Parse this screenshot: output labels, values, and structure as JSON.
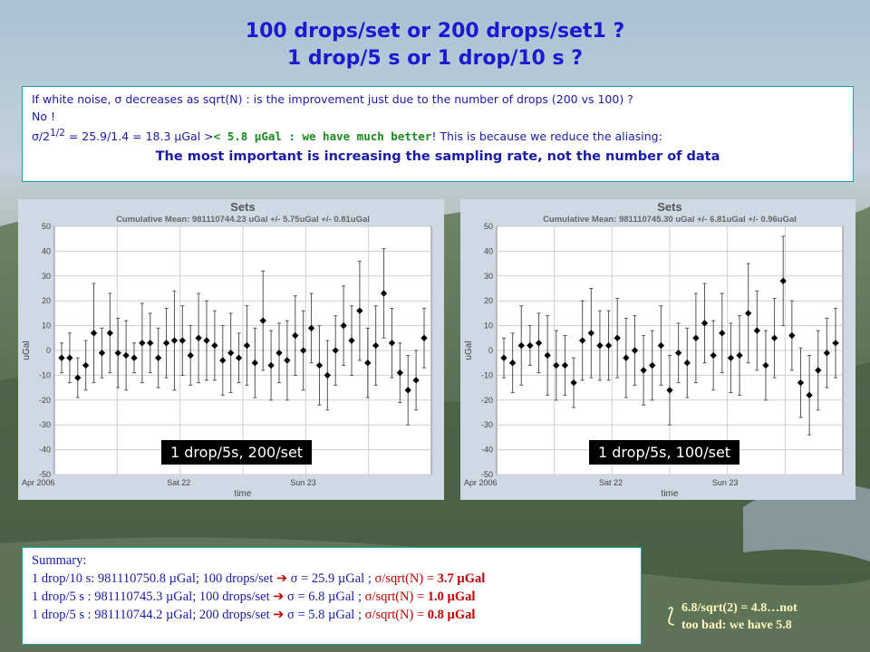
{
  "title_line1": "100 drops/set or 200 drops/set1 ?",
  "title_line2": "1 drop/5 s or 1 drop/10 s ?",
  "info": {
    "line1": "If white noise, σ decreases as sqrt(N) : is the improvement just due to the number of drops (200 vs 100) ?",
    "line2": "No !",
    "line3a": "σ/2",
    "line3sup": "1/2",
    "line3b": " = 25.9/1.4 = 18.3 µGal >",
    "line3green": "< 5.8 µGal : we have much better",
    "line3c": "! This is because we reduce the aliasing:",
    "line4": "The most important is increasing the sampling rate, not the number of data"
  },
  "chart_data": [
    {
      "type": "scatter",
      "title": "Sets",
      "subtitle": "Cumulative Mean: 981110744.23 uGal  +/-  5.75uGal  +/-  0.81uGal",
      "xlabel": "time",
      "ylabel": "uGal",
      "ylim": [
        -50,
        50
      ],
      "yticks": [
        -50,
        -40,
        -30,
        -20,
        -10,
        0,
        10,
        20,
        30,
        40,
        50
      ],
      "xtick_labels": [
        "Apr 2006",
        "Sat 22",
        "Sun 23"
      ],
      "grid": true,
      "badge": "1 drop/5s, 200/set",
      "points": [
        {
          "y": -3,
          "err": 6
        },
        {
          "y": -3,
          "err": 10
        },
        {
          "y": -11,
          "err": 8
        },
        {
          "y": -6,
          "err": 10
        },
        {
          "y": 7,
          "err": 20
        },
        {
          "y": -1,
          "err": 10
        },
        {
          "y": 7,
          "err": 16
        },
        {
          "y": -1,
          "err": 14
        },
        {
          "y": -2,
          "err": 14
        },
        {
          "y": -3,
          "err": 6
        },
        {
          "y": 3,
          "err": 16
        },
        {
          "y": 3,
          "err": 12
        },
        {
          "y": -3,
          "err": 12
        },
        {
          "y": 3,
          "err": 14
        },
        {
          "y": 4,
          "err": 20
        },
        {
          "y": 4,
          "err": 14
        },
        {
          "y": -2,
          "err": 12
        },
        {
          "y": 5,
          "err": 18
        },
        {
          "y": 4,
          "err": 16
        },
        {
          "y": 2,
          "err": 14
        },
        {
          "y": -4,
          "err": 14
        },
        {
          "y": -1,
          "err": 16
        },
        {
          "y": -3,
          "err": 10
        },
        {
          "y": 2,
          "err": 16
        },
        {
          "y": -5,
          "err": 14
        },
        {
          "y": 12,
          "err": 20
        },
        {
          "y": -6,
          "err": 14
        },
        {
          "y": -1,
          "err": 12
        },
        {
          "y": -4,
          "err": 16
        },
        {
          "y": 6,
          "err": 16
        },
        {
          "y": 0,
          "err": 16
        },
        {
          "y": 9,
          "err": 14
        },
        {
          "y": -6,
          "err": 16
        },
        {
          "y": -10,
          "err": 14
        },
        {
          "y": 0,
          "err": 14
        },
        {
          "y": 10,
          "err": 16
        },
        {
          "y": 4,
          "err": 14
        },
        {
          "y": 16,
          "err": 20
        },
        {
          "y": -5,
          "err": 14
        },
        {
          "y": 2,
          "err": 16
        },
        {
          "y": 23,
          "err": 18
        },
        {
          "y": 3,
          "err": 14
        },
        {
          "y": -9,
          "err": 12
        },
        {
          "y": -16,
          "err": 14
        },
        {
          "y": -12,
          "err": 12
        },
        {
          "y": 5,
          "err": 12
        }
      ]
    },
    {
      "type": "scatter",
      "title": "Sets",
      "subtitle": "Cumulative Mean: 981110745.30 uGal  +/-  6.81uGal  +/-  0.96uGal",
      "xlabel": "time",
      "ylabel": "uGal",
      "ylim": [
        -50,
        50
      ],
      "yticks": [
        -50,
        -40,
        -30,
        -20,
        -10,
        0,
        10,
        20,
        30,
        40,
        50
      ],
      "xtick_labels": [
        "Apr 2006",
        "Sat 22",
        "Sun 23"
      ],
      "grid": true,
      "badge": "1 drop/5s, 100/set",
      "points": [
        {
          "y": -3,
          "err": 8
        },
        {
          "y": -5,
          "err": 12
        },
        {
          "y": 2,
          "err": 16
        },
        {
          "y": 2,
          "err": 8
        },
        {
          "y": 3,
          "err": 12
        },
        {
          "y": -2,
          "err": 16
        },
        {
          "y": -6,
          "err": 14
        },
        {
          "y": -6,
          "err": 12
        },
        {
          "y": -13,
          "err": 10
        },
        {
          "y": 4,
          "err": 16
        },
        {
          "y": 7,
          "err": 18
        },
        {
          "y": 2,
          "err": 14
        },
        {
          "y": 2,
          "err": 14
        },
        {
          "y": 5,
          "err": 16
        },
        {
          "y": -3,
          "err": 16
        },
        {
          "y": 0,
          "err": 14
        },
        {
          "y": -8,
          "err": 14
        },
        {
          "y": -6,
          "err": 14
        },
        {
          "y": 2,
          "err": 16
        },
        {
          "y": -16,
          "err": 14
        },
        {
          "y": -1,
          "err": 12
        },
        {
          "y": -5,
          "err": 14
        },
        {
          "y": 5,
          "err": 18
        },
        {
          "y": 11,
          "err": 16
        },
        {
          "y": -2,
          "err": 14
        },
        {
          "y": 7,
          "err": 16
        },
        {
          "y": -3,
          "err": 14
        },
        {
          "y": -2,
          "err": 16
        },
        {
          "y": 15,
          "err": 20
        },
        {
          "y": 8,
          "err": 16
        },
        {
          "y": -6,
          "err": 14
        },
        {
          "y": 5,
          "err": 16
        },
        {
          "y": 28,
          "err": 18
        },
        {
          "y": 6,
          "err": 14
        },
        {
          "y": -13,
          "err": 14
        },
        {
          "y": -18,
          "err": 16
        },
        {
          "y": -8,
          "err": 16
        },
        {
          "y": -1,
          "err": 14
        },
        {
          "y": 3,
          "err": 14
        }
      ]
    }
  ],
  "summary": {
    "heading": "Summary:",
    "rows": [
      {
        "a": "1 drop/10 s: 981110750.8 µGal; 100 drops/set ",
        "b": " σ = 25.9 µGal ; ",
        "c": "σ/sqrt(N) = ",
        "d": "3.7 µGal"
      },
      {
        "a": "1 drop/5 s  : 981110745.3 µGal; 100 drops/set ",
        "b": " σ = 6.8 µGal ;  ",
        "c": "σ/sqrt(N) = ",
        "d": "1.0 µGal"
      },
      {
        "a": "1 drop/5 s  : 981110744.2 µGal; 200 drops/set ",
        "b": " σ = 5.8 µGal ;  ",
        "c": "σ/sqrt(N) = ",
        "d": "0.8 µGal"
      }
    ],
    "arrow": "➔"
  },
  "note": {
    "line1": "6.8/sqrt(2) = 4.8…not",
    "line2": "too bad: we have 5.8"
  },
  "colors": {
    "title": "#1a1ad0",
    "text": "#1a1aa8",
    "accent_red": "#c00000",
    "accent_green": "#1a8a1a"
  }
}
